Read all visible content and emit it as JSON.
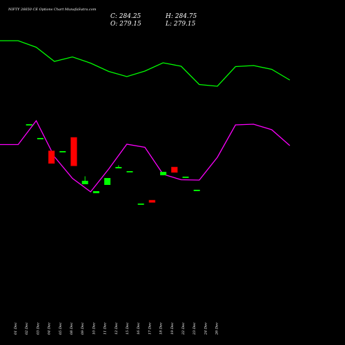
{
  "chart_data": {
    "type": "candlestick",
    "title": "NIFTY 26650  CE Options  Chart MunafaSutra.com",
    "ohlc_readout": {
      "close": "C: 284.25",
      "high": "H: 284.75",
      "open": "O: 279.15",
      "low": "L: 279.15"
    },
    "categories": [
      "01 Dec",
      "02 Dec",
      "03 Dec",
      "04 Dec",
      "05 Dec",
      "08 Dec",
      "09 Dec",
      "10 Dec",
      "11 Dec",
      "12 Dec",
      "15 Dec",
      "16 Dec",
      "17 Dec",
      "18 Dec",
      "19 Dec",
      "22 Dec",
      "23 Dec",
      "24 Dec",
      "26 Dec"
    ],
    "candles": [
      {
        "open": 320,
        "high": 320,
        "low": 320,
        "close": 320
      },
      {
        "open": 300,
        "high": 300,
        "low": 300,
        "close": 300
      },
      {
        "open": 281.5,
        "high": 281.5,
        "low": 263,
        "close": 263
      },
      {
        "open": 281,
        "high": 281,
        "low": 281,
        "close": 281
      },
      {
        "open": 301,
        "high": 301,
        "low": 259.5,
        "close": 259.5
      },
      {
        "open": 233,
        "high": 244.5,
        "low": 233,
        "close": 238
      },
      {
        "open": 220,
        "high": 223,
        "low": 220,
        "close": 223
      },
      {
        "open": 232,
        "high": 242,
        "low": 232,
        "close": 242
      },
      {
        "open": 256,
        "high": 260.5,
        "low": 256,
        "close": 258
      },
      {
        "open": 252,
        "high": 252,
        "low": 252,
        "close": 252
      },
      {
        "open": 205,
        "high": 205,
        "low": 205,
        "close": 205
      },
      {
        "open": 210,
        "high": 210,
        "low": 206.5,
        "close": 206.5
      },
      {
        "open": 246,
        "high": 251,
        "low": 246,
        "close": 251
      },
      {
        "open": 258,
        "high": 258,
        "low": 250,
        "close": 250
      },
      {
        "open": 244,
        "high": 244,
        "low": 244,
        "close": 244
      },
      {
        "open": 223,
        "high": 225,
        "low": 223,
        "close": 225
      }
    ],
    "candle_slots": [
      1,
      2,
      3,
      4,
      5,
      6,
      7,
      8,
      9,
      10,
      11,
      12,
      13,
      14,
      15,
      16
    ],
    "overlays": [
      {
        "color": "#00ff00",
        "values": [
          441,
          441,
          431.5,
          411,
          417.5,
          408.5,
          396.5,
          389,
          397,
          409,
          404,
          377.5,
          375,
          403.5,
          405,
          399.5,
          384
        ]
      },
      {
        "color": "#ff00ff",
        "values": [
          290.5,
          290.5,
          325,
          273,
          241.5,
          222,
          255,
          291,
          286.5,
          247.5,
          239.5,
          239,
          272,
          319,
          320,
          312,
          289
        ]
      }
    ],
    "colors": {
      "up": "#00ff00",
      "down": "#ff0000",
      "background": "#000000"
    }
  }
}
